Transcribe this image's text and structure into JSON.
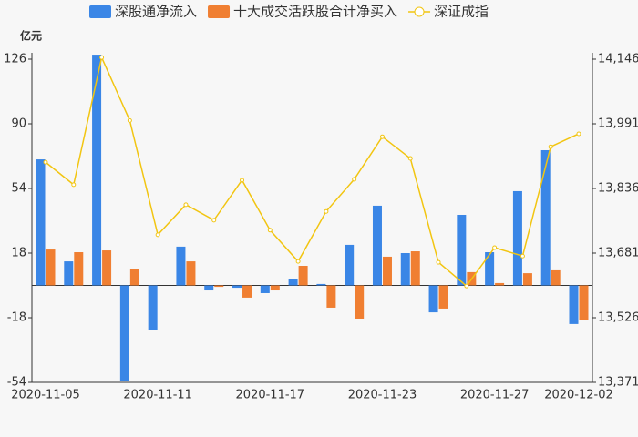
{
  "chart_data": {
    "type": "bar-line",
    "y_unit": "亿元",
    "categories": [
      "2020-11-05",
      null,
      null,
      null,
      "2020-11-11",
      null,
      null,
      null,
      "2020-11-17",
      null,
      null,
      null,
      "2020-11-23",
      null,
      null,
      null,
      "2020-11-27",
      null,
      null,
      "2020-12-02"
    ],
    "series": [
      {
        "name": "深股通净流入",
        "type": "bar",
        "color": "#3a86e6",
        "values": [
          70.2,
          13.4,
          128.5,
          -53,
          -24.6,
          21.6,
          -2.8,
          -1.3,
          -4.3,
          3.3,
          0.8,
          22.6,
          44.4,
          18,
          -15,
          39.3,
          18.5,
          52.5,
          75.3,
          -21.5
        ]
      },
      {
        "name": "十大成交活跃股合计净买入",
        "type": "bar",
        "color": "#f07f32",
        "values": [
          20,
          18.5,
          19.5,
          8.9,
          0,
          13.4,
          -0.8,
          -6.8,
          -2.8,
          10.9,
          -12.4,
          -18.5,
          16,
          19,
          -12.9,
          7.4,
          1.3,
          6.8,
          8.4,
          -19.5
        ]
      },
      {
        "name": "深证成指",
        "type": "line",
        "color": "#f2c511",
        "axis": "y2",
        "values": [
          13899,
          13845,
          14150,
          13999,
          13725,
          13797,
          13760,
          13856,
          13736,
          13661,
          13781,
          13858,
          13960,
          13908,
          13659,
          13602,
          13694,
          13674,
          13936,
          13967
        ]
      }
    ],
    "ylim": [
      -54,
      126
    ],
    "yticks": [
      -54,
      -18,
      18,
      54,
      90,
      126
    ],
    "y2lim": [
      13371,
      14146
    ],
    "y2ticks": [
      {
        "value": 13371,
        "label": "13,371"
      },
      {
        "value": 13526,
        "label": "13,526"
      },
      {
        "value": 13681,
        "label": "13,681"
      },
      {
        "value": 13836,
        "label": "13,836"
      },
      {
        "value": 13991,
        "label": "13,991"
      },
      {
        "value": 14146,
        "label": "14,146"
      }
    ],
    "legend": "top"
  }
}
